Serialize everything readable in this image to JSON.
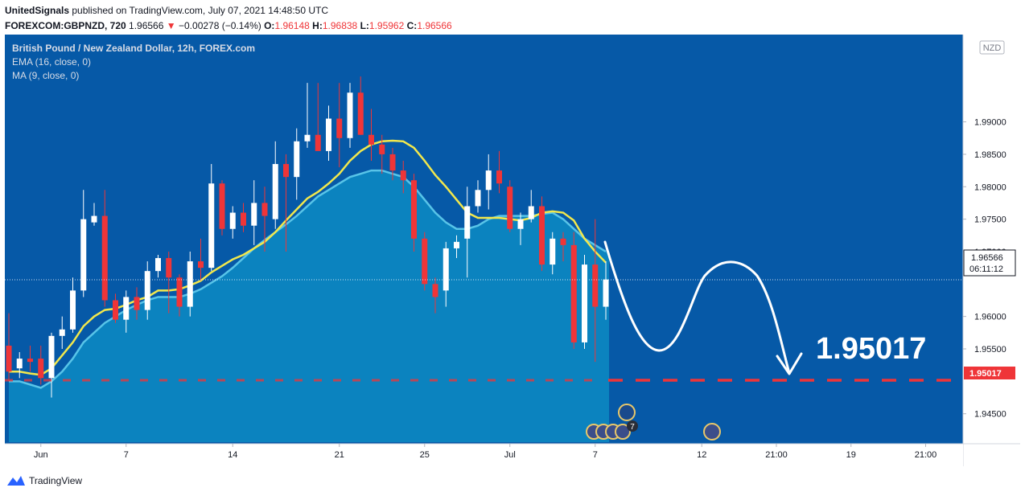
{
  "header": {
    "author": "UnitedSignals",
    "published_text": "published on TradingView.com, July 07, 2021 14:48:50 UTC",
    "symbol": "FOREXCOM:GBPNZD, 720",
    "last_price": "1.96566",
    "change_arrow": "▼",
    "change": "−0.00278 (−0.14%)",
    "o_label": "O:",
    "o_value": "1.96148",
    "h_label": "H:",
    "h_value": "1.96838",
    "l_label": "L:",
    "l_value": "1.95962",
    "c_label": "C:",
    "c_value": "1.96566"
  },
  "legend": {
    "title": "British Pound / New Zealand Dollar, 12h, FOREX.com",
    "ema": "EMA (16, close, 0)",
    "ma": "MA (9, close, 0)"
  },
  "currency_badge": "NZD",
  "price_tag": {
    "value": "1.96566",
    "countdown": "06:11:12"
  },
  "target_tag": "1.95017",
  "annotation_text": "1.95017",
  "event_badge_count": "7",
  "footer": {
    "brand": "TradingView"
  },
  "colors": {
    "background": "#0659a7",
    "area_fill": "#0c86c0",
    "up_candle": "#ffffff",
    "down_candle": "#ef3538",
    "ema": "#f2e84c",
    "ma": "#58c4e8",
    "target_line": "#ef3538",
    "arrow": "#ffffff"
  },
  "chart_data": {
    "type": "candlestick",
    "title": "British Pound / New Zealand Dollar, 12h, FOREX.com",
    "y_ticks": [
      "1.99000",
      "1.98500",
      "1.98000",
      "1.97500",
      "1.97000",
      "1.96000",
      "1.95500",
      "1.94500"
    ],
    "x_ticks": [
      "Jun",
      "7",
      "14",
      "21",
      "25",
      "Jul",
      "7",
      "12",
      "21:00",
      "19",
      "21:00"
    ],
    "ylim": [
      1.9405,
      1.9985
    ],
    "candles": [
      {
        "o": 1.9555,
        "h": 1.9605,
        "l": 1.95,
        "c": 1.9515
      },
      {
        "o": 1.952,
        "h": 1.9545,
        "l": 1.9505,
        "c": 1.9535
      },
      {
        "o": 1.9535,
        "h": 1.9555,
        "l": 1.9515,
        "c": 1.953
      },
      {
        "o": 1.9535,
        "h": 1.9555,
        "l": 1.9495,
        "c": 1.9505
      },
      {
        "o": 1.9505,
        "h": 1.9575,
        "l": 1.9475,
        "c": 1.957
      },
      {
        "o": 1.957,
        "h": 1.96,
        "l": 1.955,
        "c": 1.958
      },
      {
        "o": 1.958,
        "h": 1.966,
        "l": 1.9575,
        "c": 1.964
      },
      {
        "o": 1.964,
        "h": 1.9795,
        "l": 1.963,
        "c": 1.975
      },
      {
        "o": 1.9745,
        "h": 1.9775,
        "l": 1.974,
        "c": 1.9755
      },
      {
        "o": 1.9755,
        "h": 1.9795,
        "l": 1.9615,
        "c": 1.9625
      },
      {
        "o": 1.9625,
        "h": 1.9635,
        "l": 1.959,
        "c": 1.9595
      },
      {
        "o": 1.9595,
        "h": 1.964,
        "l": 1.9575,
        "c": 1.963
      },
      {
        "o": 1.963,
        "h": 1.9645,
        "l": 1.9595,
        "c": 1.961
      },
      {
        "o": 1.961,
        "h": 1.9685,
        "l": 1.9595,
        "c": 1.967
      },
      {
        "o": 1.967,
        "h": 1.9695,
        "l": 1.966,
        "c": 1.969
      },
      {
        "o": 1.969,
        "h": 1.97,
        "l": 1.9605,
        "c": 1.966
      },
      {
        "o": 1.966,
        "h": 1.9665,
        "l": 1.96,
        "c": 1.9615
      },
      {
        "o": 1.9615,
        "h": 1.97,
        "l": 1.96,
        "c": 1.9685
      },
      {
        "o": 1.9685,
        "h": 1.972,
        "l": 1.9655,
        "c": 1.9675
      },
      {
        "o": 1.9675,
        "h": 1.9835,
        "l": 1.967,
        "c": 1.9805
      },
      {
        "o": 1.9805,
        "h": 1.981,
        "l": 1.9725,
        "c": 1.9735
      },
      {
        "o": 1.9735,
        "h": 1.977,
        "l": 1.972,
        "c": 1.976
      },
      {
        "o": 1.976,
        "h": 1.9775,
        "l": 1.973,
        "c": 1.974
      },
      {
        "o": 1.974,
        "h": 1.981,
        "l": 1.971,
        "c": 1.9775
      },
      {
        "o": 1.9775,
        "h": 1.98,
        "l": 1.97,
        "c": 1.9755
      },
      {
        "o": 1.975,
        "h": 1.987,
        "l": 1.9735,
        "c": 1.9835
      },
      {
        "o": 1.9835,
        "h": 1.985,
        "l": 1.97,
        "c": 1.9815
      },
      {
        "o": 1.9815,
        "h": 1.989,
        "l": 1.978,
        "c": 1.987
      },
      {
        "o": 1.987,
        "h": 1.996,
        "l": 1.986,
        "c": 1.988
      },
      {
        "o": 1.988,
        "h": 1.996,
        "l": 1.986,
        "c": 1.9855
      },
      {
        "o": 1.9855,
        "h": 1.9925,
        "l": 1.984,
        "c": 1.9905
      },
      {
        "o": 1.9905,
        "h": 1.996,
        "l": 1.983,
        "c": 1.9875
      },
      {
        "o": 1.9875,
        "h": 1.996,
        "l": 1.986,
        "c": 1.9945
      },
      {
        "o": 1.9945,
        "h": 1.997,
        "l": 1.988,
        "c": 1.988
      },
      {
        "o": 1.988,
        "h": 1.992,
        "l": 1.984,
        "c": 1.9865
      },
      {
        "o": 1.9865,
        "h": 1.988,
        "l": 1.982,
        "c": 1.985
      },
      {
        "o": 1.985,
        "h": 1.986,
        "l": 1.981,
        "c": 1.9825
      },
      {
        "o": 1.9825,
        "h": 1.984,
        "l": 1.979,
        "c": 1.981
      },
      {
        "o": 1.981,
        "h": 1.982,
        "l": 1.97,
        "c": 1.972
      },
      {
        "o": 1.972,
        "h": 1.973,
        "l": 1.964,
        "c": 1.965
      },
      {
        "o": 1.965,
        "h": 1.966,
        "l": 1.9605,
        "c": 1.963
      },
      {
        "o": 1.964,
        "h": 1.9715,
        "l": 1.9615,
        "c": 1.9705
      },
      {
        "o": 1.9705,
        "h": 1.9725,
        "l": 1.969,
        "c": 1.9715
      },
      {
        "o": 1.972,
        "h": 1.98,
        "l": 1.966,
        "c": 1.977
      },
      {
        "o": 1.977,
        "h": 1.981,
        "l": 1.976,
        "c": 1.9795
      },
      {
        "o": 1.9795,
        "h": 1.985,
        "l": 1.9765,
        "c": 1.9825
      },
      {
        "o": 1.9825,
        "h": 1.9855,
        "l": 1.979,
        "c": 1.9805
      },
      {
        "o": 1.98,
        "h": 1.981,
        "l": 1.973,
        "c": 1.9735
      },
      {
        "o": 1.9735,
        "h": 1.976,
        "l": 1.971,
        "c": 1.975
      },
      {
        "o": 1.975,
        "h": 1.9795,
        "l": 1.9745,
        "c": 1.977
      },
      {
        "o": 1.977,
        "h": 1.9785,
        "l": 1.967,
        "c": 1.968
      },
      {
        "o": 1.968,
        "h": 1.973,
        "l": 1.9665,
        "c": 1.972
      },
      {
        "o": 1.972,
        "h": 1.973,
        "l": 1.9685,
        "c": 1.971
      },
      {
        "o": 1.971,
        "h": 1.973,
        "l": 1.955,
        "c": 1.956
      },
      {
        "o": 1.956,
        "h": 1.9695,
        "l": 1.955,
        "c": 1.968
      },
      {
        "o": 1.968,
        "h": 1.975,
        "l": 1.953,
        "c": 1.9615
      },
      {
        "o": 1.9615,
        "h": 1.9685,
        "l": 1.9595,
        "c": 1.9657
      }
    ],
    "ema": [
      1.9515,
      1.9515,
      1.9512,
      1.951,
      1.952,
      1.954,
      1.956,
      1.9585,
      1.96,
      1.961,
      1.9612,
      1.9618,
      1.9625,
      1.963,
      1.964,
      1.964,
      1.9642,
      1.9648,
      1.9655,
      1.9668,
      1.9678,
      1.9688,
      1.9695,
      1.9705,
      1.9715,
      1.973,
      1.9748,
      1.9765,
      1.9782,
      1.9792,
      1.9805,
      1.982,
      1.984,
      1.9855,
      1.9865,
      1.987,
      1.9871,
      1.987,
      1.986,
      1.984,
      1.9818,
      1.98,
      1.978,
      1.976,
      1.9752,
      1.9752,
      1.9752,
      1.975,
      1.9748,
      1.9752,
      1.976,
      1.9762,
      1.976,
      1.9748,
      1.972,
      1.97,
      1.9683
    ],
    "ma": [
      1.95,
      1.95,
      1.9495,
      1.949,
      1.95,
      1.9515,
      1.9535,
      1.956,
      1.9575,
      1.959,
      1.96,
      1.961,
      1.9618,
      1.9625,
      1.963,
      1.963,
      1.963,
      1.9635,
      1.9642,
      1.9652,
      1.9662,
      1.9675,
      1.969,
      1.9705,
      1.9718,
      1.973,
      1.9742,
      1.9755,
      1.977,
      1.9785,
      1.9795,
      1.9805,
      1.9815,
      1.982,
      1.9825,
      1.9825,
      1.982,
      1.9815,
      1.98,
      1.978,
      1.976,
      1.9745,
      1.9735,
      1.9735,
      1.974,
      1.975,
      1.9755,
      1.9755,
      1.9755,
      1.9755,
      1.9758,
      1.976,
      1.975,
      1.9735,
      1.972,
      1.971,
      1.97
    ],
    "target_level": 1.95017,
    "current_price": 1.96566
  }
}
